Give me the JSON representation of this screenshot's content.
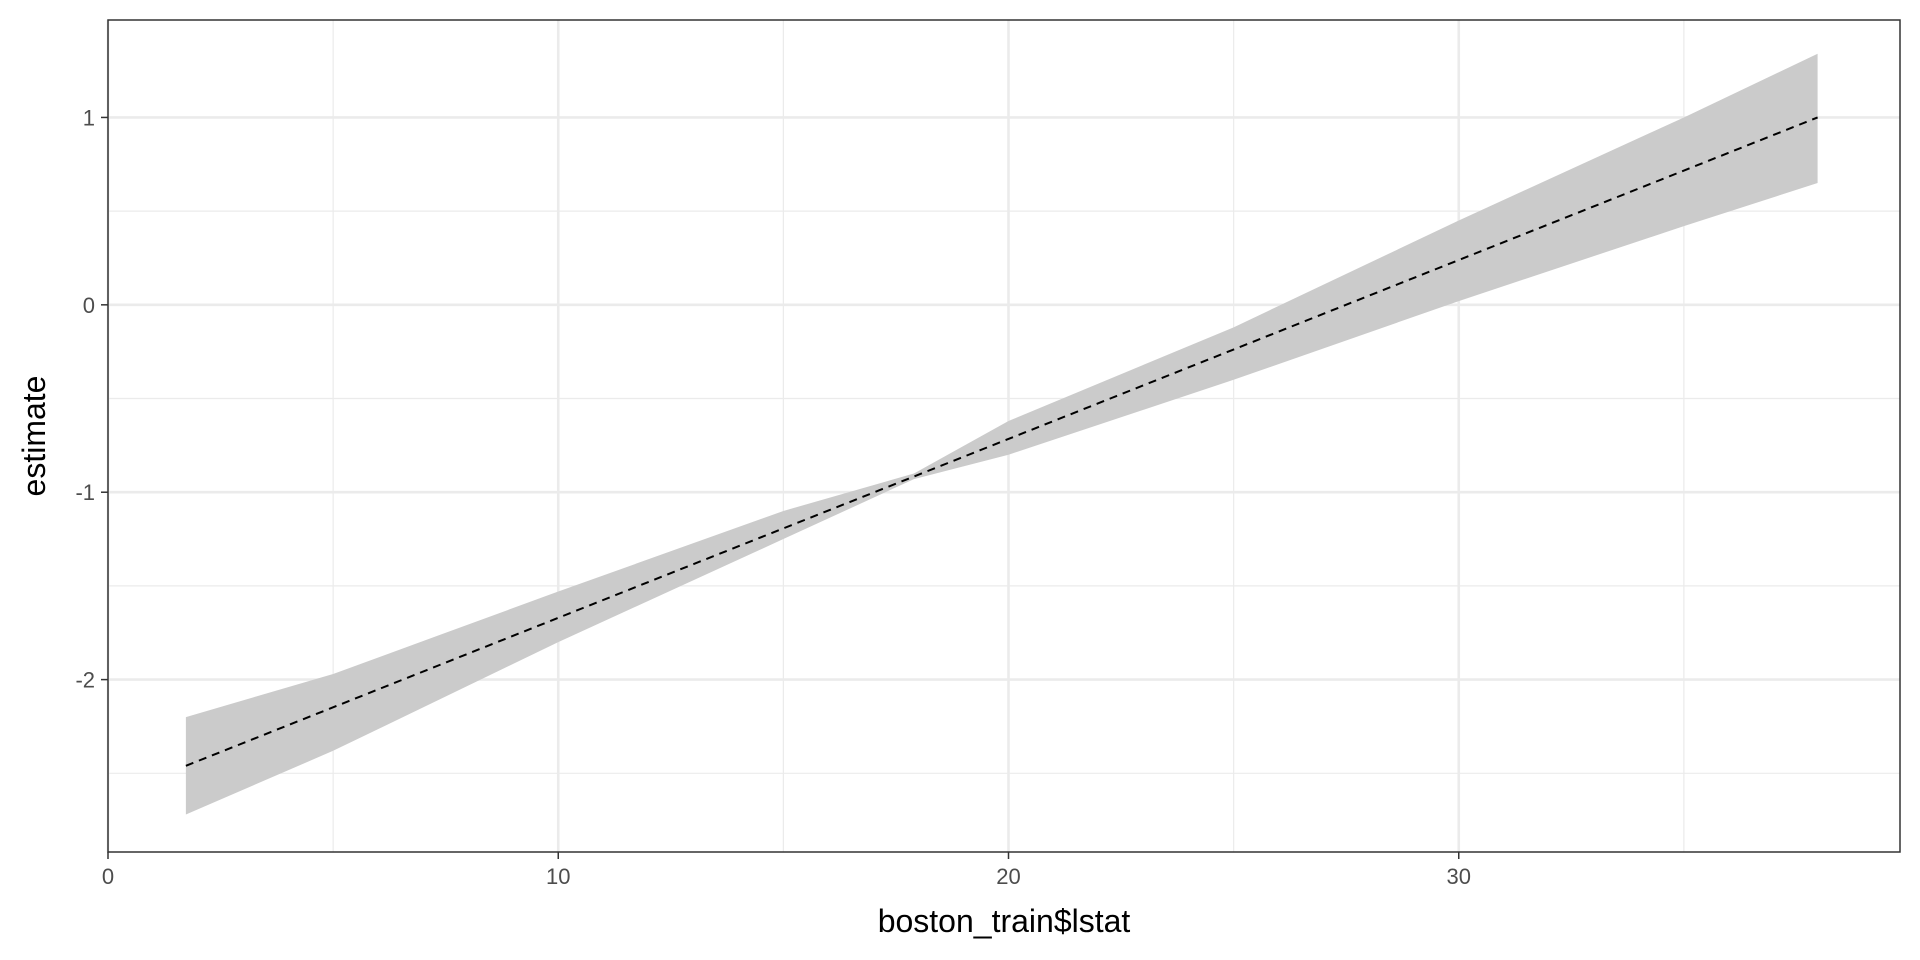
{
  "chart_data": {
    "type": "line",
    "title": "",
    "xlabel": "boston_train$lstat",
    "ylabel": "estimate",
    "xlim": [
      0,
      39.8
    ],
    "ylim": [
      -2.92,
      1.52
    ],
    "x_ticks": [
      0,
      10,
      20,
      30
    ],
    "x_minor_ticks": [
      5,
      15,
      25,
      35
    ],
    "y_ticks": [
      -2,
      -1,
      0,
      1
    ],
    "y_minor_ticks": [
      -2.5,
      -1.5,
      -0.5,
      0.5
    ],
    "grid": true,
    "legend": "none",
    "series": [
      {
        "x": [
          1.73,
          37.97
        ],
        "estimate": [
          -2.46,
          1.0
        ],
        "lower": [
          -2.72,
          0.65
        ],
        "upper": [
          -2.2,
          1.34
        ],
        "band_points": {
          "x": [
            1.73,
            5,
            10,
            15,
            17.9,
            20,
            25,
            30,
            35,
            37.97
          ],
          "lower": [
            -2.72,
            -2.38,
            -1.8,
            -1.25,
            -0.93,
            -0.8,
            -0.4,
            0.02,
            0.42,
            0.65
          ],
          "upper": [
            -2.2,
            -1.97,
            -1.53,
            -1.1,
            -0.9,
            -0.62,
            -0.12,
            0.45,
            1.0,
            1.34
          ]
        }
      }
    ],
    "colors": {
      "band": "#cbcbcb",
      "line": "#000000",
      "grid": "#ebebeb",
      "panel_border": "#333333",
      "tick_text": "#4d4d4d"
    }
  }
}
